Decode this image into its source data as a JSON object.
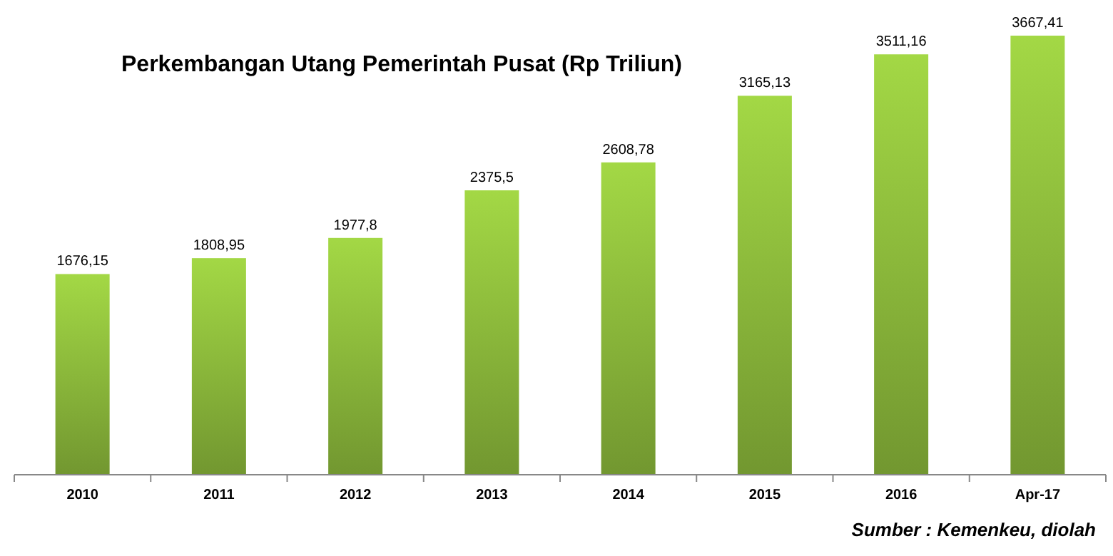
{
  "chart_data": {
    "type": "bar",
    "title": "Perkembangan Utang Pemerintah Pusat (Rp Triliun)",
    "categories": [
      "2010",
      "2011",
      "2012",
      "2013",
      "2014",
      "2015",
      "2016",
      "Apr-17"
    ],
    "values": [
      1676.15,
      1808.95,
      1977.8,
      2375.5,
      2608.78,
      3165.13,
      3511.16,
      3667.41
    ],
    "value_labels": [
      "1676,15",
      "1808,95",
      "1977,8",
      "2375,5",
      "2608,78",
      "3165,13",
      "3511,16",
      "3667,41"
    ],
    "color": "#8dbb3c",
    "annotations": [
      "Sumber : Kemenkeu, diolah"
    ]
  }
}
